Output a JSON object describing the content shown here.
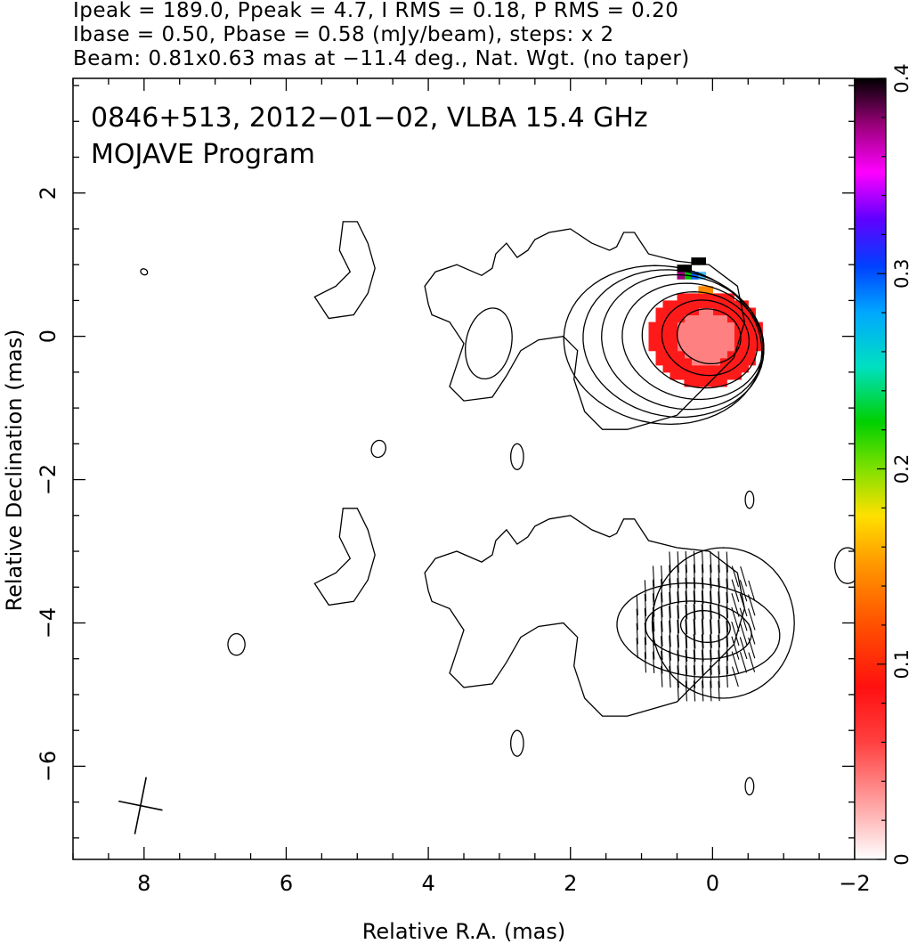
{
  "header": {
    "line1": "Ipeak = 189.0, Ppeak = 4.7, I RMS = 0.18, P RMS = 0.20",
    "line2": "Ibase = 0.50, Pbase = 0.58 (mJy/beam), steps: x 2",
    "line3": "Beam: 0.81x0.63 mas at −11.4 deg., Nat. Wgt. (no taper)"
  },
  "plot_title": {
    "line1": "0846+513, 2012−01−02, VLBA 15.4 GHz",
    "line2": "MOJAVE Program"
  },
  "chart_data": {
    "type": "heatmap",
    "description_kind": "VLBI total intensity contour map with fractional polarization color overlay and EVPA ticks",
    "xlabel": "Relative R.A. (mas)",
    "ylabel": "Relative Declination (mas)",
    "xlim": [
      9.0,
      -2.0
    ],
    "ylim": [
      -7.3,
      3.6
    ],
    "x_ticks": [
      8,
      6,
      4,
      2,
      0,
      -2
    ],
    "x_tick_labels": [
      "8",
      "6",
      "4",
      "2",
      "0",
      "−2"
    ],
    "y_ticks": [
      2,
      0,
      -2,
      -4,
      -6
    ],
    "y_tick_labels": [
      "2",
      "0",
      "−2",
      "−4",
      "−6"
    ],
    "colorbar": {
      "range": [
        0,
        0.4
      ],
      "ticks": [
        0,
        0.1,
        0.2,
        0.3,
        0.4
      ],
      "tick_labels": [
        "0",
        "0.1",
        "0.2",
        "0.3",
        "0.4"
      ]
    },
    "core_position": [
      0.0,
      0.0
    ],
    "polarization_peak_position": [
      0.0,
      -4.0
    ],
    "beam": {
      "major_mas": 0.81,
      "minor_mas": 0.63,
      "pa_deg": -11.4,
      "center": [
        8.05,
        -6.55
      ]
    },
    "image_separation_mas": 4.0,
    "colors": {
      "contour": "#000000",
      "frac_pol_low": "#ff8080",
      "frac_pol_mid": "#ff1a1a",
      "frac_pol_high": "#ff8800",
      "frac_pol_max": "#000000"
    }
  }
}
